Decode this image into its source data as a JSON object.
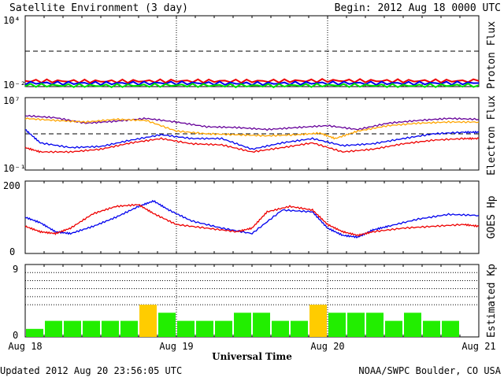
{
  "header": {
    "title": "Satellite Environment (3 day)",
    "begin": "Begin:  2012 Aug 18 0000 UTC"
  },
  "footer": {
    "updated": "Updated 2012 Aug 20 23:56:05 UTC",
    "credit": "NOAA/SWPC Boulder, CO USA"
  },
  "colors": {
    "red": "#ee0000",
    "blue": "#0000ee",
    "green": "#00dd00",
    "purple": "#660099",
    "orange": "#ffa500",
    "kp_green": "#22ee00",
    "kp_yellow": "#ffcc00"
  },
  "chart_data": [
    {
      "type": "line",
      "ylabel": "Proton Flux",
      "yscale": "log",
      "ylim": [
        0.01,
        10000
      ],
      "ytick_labels": [
        "10⁴",
        "10⁻²"
      ],
      "threshold": 10,
      "x_days": [
        0,
        3
      ],
      "series": [
        {
          "color": "red",
          "x": [
            0,
            0.5,
            1,
            1.5,
            2,
            2.5,
            3
          ],
          "y": [
            0.03,
            0.028,
            0.03,
            0.029,
            0.032,
            0.03,
            0.03
          ]
        },
        {
          "color": "blue",
          "x": [
            0,
            0.5,
            1,
            1.5,
            2,
            2.5,
            3
          ],
          "y": [
            0.02,
            0.019,
            0.02,
            0.018,
            0.02,
            0.019,
            0.02
          ]
        },
        {
          "color": "green",
          "x": [
            0,
            0.5,
            1,
            1.5,
            2,
            2.5,
            3
          ],
          "y": [
            0.013,
            0.012,
            0.013,
            0.012,
            0.013,
            0.012,
            0.013
          ]
        }
      ]
    },
    {
      "type": "line",
      "ylabel": "Electron Flux",
      "yscale": "log",
      "ylim": [
        0.1,
        10000000
      ],
      "ytick_labels": [
        "10⁷",
        "10⁻¹"
      ],
      "threshold": 1000,
      "series": [
        {
          "color": "purple",
          "x": [
            0,
            0.2,
            0.4,
            0.6,
            0.8,
            1.0,
            1.2,
            1.4,
            1.6,
            1.8,
            2.0,
            2.2,
            2.4,
            2.6,
            2.8,
            3.0
          ],
          "y": [
            100000,
            60000,
            15000,
            25000,
            50000,
            20000,
            6000,
            5000,
            3000,
            5000,
            8000,
            3000,
            15000,
            30000,
            50000,
            40000
          ]
        },
        {
          "color": "orange",
          "x": [
            0,
            0.2,
            0.4,
            0.6,
            0.8,
            1.0,
            1.2,
            1.4,
            1.6,
            1.8,
            1.95,
            2.05,
            2.2,
            2.4,
            2.6,
            2.8,
            3.0
          ],
          "y": [
            50000,
            30000,
            20000,
            40000,
            30000,
            2000,
            1000,
            800,
            600,
            800,
            1200,
            300,
            2000,
            8000,
            15000,
            20000,
            20000
          ]
        },
        {
          "color": "blue",
          "x": [
            0,
            0.1,
            0.3,
            0.5,
            0.7,
            0.9,
            1.1,
            1.3,
            1.5,
            1.7,
            1.9,
            2.1,
            2.3,
            2.5,
            2.7,
            2.9,
            3.0
          ],
          "y": [
            3000,
            100,
            30,
            40,
            200,
            800,
            300,
            300,
            20,
            100,
            300,
            50,
            80,
            300,
            1000,
            1500,
            1500
          ]
        },
        {
          "color": "red",
          "x": [
            0,
            0.1,
            0.3,
            0.5,
            0.7,
            0.9,
            1.1,
            1.3,
            1.5,
            1.7,
            1.9,
            2.1,
            2.3,
            2.5,
            2.7,
            2.9,
            3.0
          ],
          "y": [
            30,
            10,
            10,
            20,
            100,
            300,
            80,
            60,
            10,
            30,
            100,
            10,
            20,
            80,
            200,
            300,
            300
          ]
        }
      ]
    },
    {
      "type": "line",
      "ylabel": "GOES Hp",
      "ylim": [
        0,
        200
      ],
      "ytick_labels": [
        "200",
        "0"
      ],
      "series": [
        {
          "color": "blue",
          "x": [
            0,
            0.1,
            0.2,
            0.3,
            0.45,
            0.6,
            0.75,
            0.85,
            0.95,
            1.1,
            1.3,
            1.5,
            1.7,
            1.9,
            2.0,
            2.1,
            2.2,
            2.3,
            2.4,
            2.6,
            2.8,
            3.0
          ],
          "y": [
            100,
            85,
            60,
            55,
            75,
            100,
            130,
            145,
            120,
            90,
            70,
            55,
            120,
            115,
            70,
            50,
            45,
            65,
            75,
            95,
            108,
            105
          ]
        },
        {
          "color": "red",
          "x": [
            0,
            0.1,
            0.2,
            0.3,
            0.45,
            0.6,
            0.75,
            0.85,
            1.0,
            1.2,
            1.4,
            1.5,
            1.6,
            1.75,
            1.9,
            2.0,
            2.1,
            2.2,
            2.3,
            2.5,
            2.7,
            2.9,
            3.0
          ],
          "y": [
            75,
            60,
            55,
            70,
            110,
            130,
            135,
            110,
            80,
            70,
            60,
            70,
            115,
            130,
            120,
            80,
            60,
            50,
            60,
            70,
            75,
            80,
            75
          ]
        }
      ]
    },
    {
      "type": "bar",
      "ylabel": "Estimated Kp",
      "ylim": [
        0,
        9
      ],
      "ytick_labels": [
        "9",
        "0"
      ],
      "gridlines": [
        4,
        5,
        6,
        7,
        8
      ],
      "values": [
        1,
        2,
        2,
        2,
        2,
        2,
        4,
        3,
        2,
        2,
        2,
        3,
        3,
        2,
        2,
        4,
        3,
        3,
        3,
        2,
        3,
        2,
        2
      ],
      "bar_color_rule": "yellow if value >= 4 else green",
      "xlabel": "Universal Time",
      "x_tick_labels": [
        "Aug 18",
        "Aug 19",
        "Aug 20",
        "Aug 21"
      ]
    }
  ]
}
